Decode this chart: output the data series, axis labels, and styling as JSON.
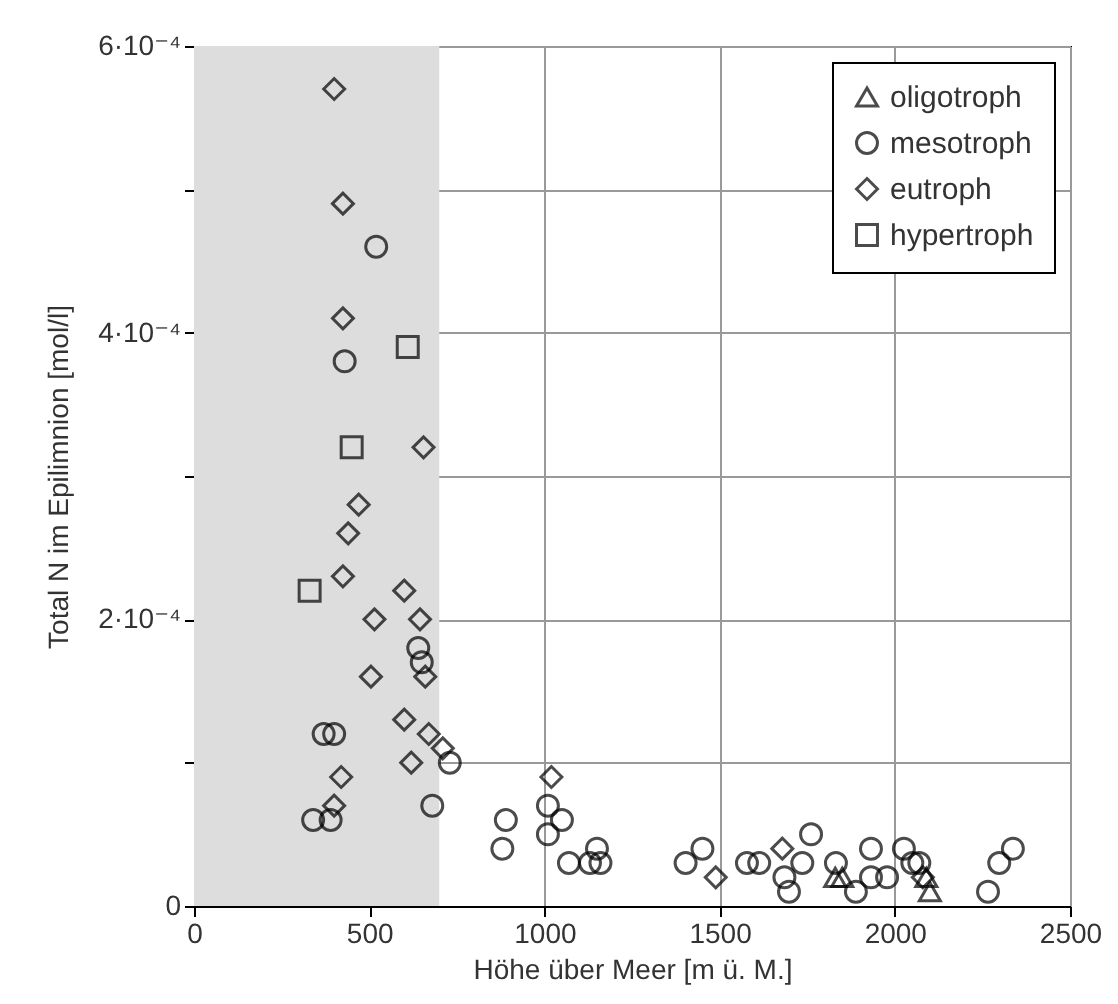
{
  "chart_data": {
    "type": "scatter",
    "xlabel": "Höhe über Meer [m ü. M.]",
    "ylabel": "Total N im Epilimnion [mol/l]",
    "xlim": [
      0,
      2500
    ],
    "xticks": [
      0,
      500,
      1000,
      1500,
      2000,
      2500
    ],
    "ylim": [
      0,
      0.0006
    ],
    "yticks": [
      0,
      {
        "value": 0.0001,
        "label": null
      },
      {
        "value": 0.0002,
        "label": "2·10⁻⁴"
      },
      {
        "value": 0.0003,
        "label": null
      },
      {
        "value": 0.0004,
        "label": "4·10⁻⁴"
      },
      {
        "value": 0.0005,
        "label": null
      },
      {
        "value": 0.0006,
        "label": "6·10⁻⁴"
      }
    ],
    "grid": true,
    "legend": "top right",
    "bands": [
      {
        "axis": "x",
        "from": 0,
        "to": 700,
        "color": "#dddddd"
      }
    ],
    "series": [
      {
        "name": "oligotroph",
        "color": "#000000",
        "marker": "triangle",
        "x": [
          1830,
          1850,
          2090,
          2100
        ],
        "values": [
          2e-05,
          2e-05,
          2e-05,
          1e-05
        ]
      },
      {
        "name": "mesotroph",
        "color": "#000000",
        "marker": "circle",
        "x": [
          520,
          430,
          640,
          650,
          370,
          400,
          730,
          340,
          390,
          680,
          880,
          890,
          1010,
          1050,
          1010,
          1070,
          1130,
          1150,
          1160,
          1403,
          1451,
          1578,
          1613,
          1685,
          1698,
          1736,
          1761,
          1832,
          1889,
          1932,
          1932,
          1978,
          2026,
          2050,
          2070,
          2266,
          2298,
          2337
        ],
        "values": [
          0.00046,
          0.00038,
          0.00018,
          0.00017,
          0.00012,
          0.00012,
          0.0001,
          6e-05,
          6e-05,
          7e-05,
          4e-05,
          6e-05,
          7e-05,
          6e-05,
          5e-05,
          3e-05,
          3e-05,
          4e-05,
          3e-05,
          3e-05,
          4e-05,
          3e-05,
          3e-05,
          2e-05,
          1e-05,
          3e-05,
          5e-05,
          3e-05,
          1e-05,
          2e-05,
          4e-05,
          2e-05,
          4e-05,
          3e-05,
          3e-05,
          1e-05,
          3e-05,
          4e-05
        ]
      },
      {
        "name": "eutroph",
        "color": "#000000",
        "marker": "diamond",
        "x": [
          400,
          425,
          425,
          655,
          470,
          440,
          425,
          600,
          645,
          515,
          660,
          505,
          600,
          670,
          620,
          710,
          420,
          400,
          1020,
          1489,
          1679,
          2080
        ],
        "values": [
          0.00057,
          0.00049,
          0.00041,
          0.00032,
          0.00028,
          0.00026,
          0.00023,
          0.00022,
          0.0002,
          0.0002,
          0.00016,
          0.00016,
          0.00013,
          0.00012,
          0.0001,
          0.00011,
          9e-05,
          7e-05,
          9e-05,
          2e-05,
          4e-05,
          2e-05
        ]
      },
      {
        "name": "hypertroph",
        "color": "#000000",
        "marker": "square",
        "x": [
          610,
          450,
          330
        ],
        "values": [
          0.00039,
          0.00032,
          0.00022
        ]
      }
    ]
  }
}
